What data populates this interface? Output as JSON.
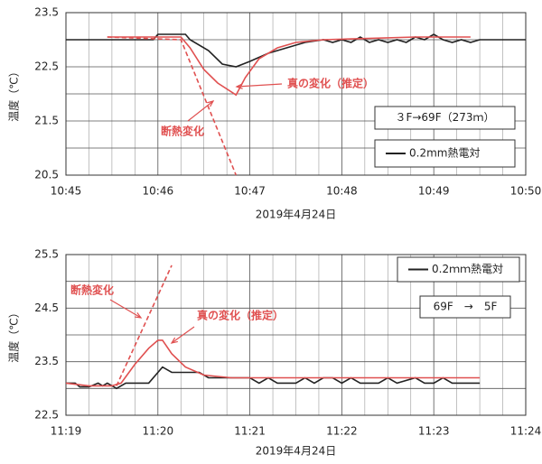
{
  "chart_data": [
    {
      "type": "line",
      "x_label": "2019年4月24日",
      "y_label": "温度（℃）",
      "xlim": [
        645,
        650
      ],
      "ylim": [
        20.5,
        23.5
      ],
      "xticks": [
        {
          "value": 645,
          "label": "10:45"
        },
        {
          "value": 646,
          "label": "10:46"
        },
        {
          "value": 647,
          "label": "10:47"
        },
        {
          "value": 648,
          "label": "10:48"
        },
        {
          "value": 649,
          "label": "10:49"
        },
        {
          "value": 650,
          "label": "10:50"
        }
      ],
      "yticks": [
        20.5,
        21.5,
        22.5,
        23.5
      ],
      "grid": true,
      "annotations": [
        "３F→69F（273ｍ）"
      ],
      "series": [
        {
          "name": "0.2mm熱電対",
          "color": "#222222",
          "dashed": false,
          "x": [
            645.0,
            645.95,
            646.0,
            646.3,
            646.35,
            646.55,
            646.7,
            646.85,
            647.0,
            647.2,
            647.4,
            647.6,
            647.8,
            647.9,
            648.0,
            648.1,
            648.2,
            648.3,
            648.4,
            648.5,
            648.6,
            648.7,
            648.8,
            648.9,
            649.0,
            649.1,
            649.2,
            649.3,
            649.4,
            649.5,
            650.0
          ],
          "values": [
            23.0,
            23.0,
            23.1,
            23.1,
            23.0,
            22.8,
            22.55,
            22.5,
            22.6,
            22.75,
            22.85,
            22.95,
            23.0,
            22.95,
            23.0,
            22.95,
            23.05,
            22.95,
            23.0,
            22.95,
            23.0,
            22.95,
            23.05,
            23.0,
            23.1,
            23.0,
            22.95,
            23.0,
            22.95,
            23.0,
            23.0
          ]
        },
        {
          "name": "真の変化（推定）",
          "color": "#e05050",
          "dashed": false,
          "x": [
            645.45,
            646.25,
            646.35,
            646.5,
            646.65,
            646.85,
            646.95,
            647.1,
            647.3,
            647.5,
            647.8,
            648.2,
            648.8,
            649.4
          ],
          "values": [
            23.05,
            23.05,
            22.85,
            22.45,
            22.2,
            21.98,
            22.3,
            22.65,
            22.85,
            22.95,
            23.0,
            23.02,
            23.05,
            23.05
          ]
        },
        {
          "name": "断熱変化",
          "color": "#e05050",
          "dashed": true,
          "x": [
            645.45,
            646.25,
            646.85
          ],
          "values": [
            23.05,
            23.0,
            20.5
          ]
        }
      ]
    },
    {
      "type": "line",
      "x_label": "2019年4月24日",
      "y_label": "温度（℃）",
      "xlim": [
        679,
        684
      ],
      "ylim": [
        22.5,
        25.5
      ],
      "xticks": [
        {
          "value": 679,
          "label": "11:19"
        },
        {
          "value": 680,
          "label": "11:20"
        },
        {
          "value": 681,
          "label": "11:21"
        },
        {
          "value": 682,
          "label": "11:22"
        },
        {
          "value": 683,
          "label": "11:23"
        },
        {
          "value": 684,
          "label": "11:24"
        }
      ],
      "yticks": [
        22.5,
        23.5,
        24.5,
        25.5
      ],
      "grid": true,
      "annotations": [
        "69F　→　5F"
      ],
      "series": [
        {
          "name": "0.2ｍｍ熱電対",
          "color": "#222222",
          "dashed": false,
          "x": [
            679.0,
            679.1,
            679.15,
            679.25,
            679.35,
            679.4,
            679.45,
            679.55,
            679.65,
            679.9,
            680.05,
            680.15,
            680.45,
            680.55,
            681.0,
            681.1,
            681.2,
            681.3,
            681.5,
            681.6,
            681.7,
            681.8,
            681.9,
            682.0,
            682.1,
            682.2,
            682.4,
            682.5,
            682.6,
            682.8,
            682.9,
            683.0,
            683.1,
            683.2,
            683.5
          ],
          "values": [
            23.1,
            23.1,
            23.03,
            23.03,
            23.1,
            23.05,
            23.1,
            23.0,
            23.1,
            23.1,
            23.4,
            23.3,
            23.3,
            23.2,
            23.2,
            23.1,
            23.2,
            23.1,
            23.1,
            23.2,
            23.1,
            23.2,
            23.2,
            23.1,
            23.2,
            23.1,
            23.1,
            23.2,
            23.1,
            23.2,
            23.1,
            23.1,
            23.2,
            23.1,
            23.1
          ]
        },
        {
          "name": "真の変化（推定）",
          "color": "#e05050",
          "dashed": false,
          "x": [
            679.0,
            679.25,
            679.5,
            679.6,
            679.75,
            679.9,
            680.0,
            680.05,
            680.15,
            680.3,
            680.5,
            680.8,
            683.5
          ],
          "values": [
            23.1,
            23.05,
            23.05,
            23.1,
            23.45,
            23.75,
            23.9,
            23.9,
            23.65,
            23.4,
            23.25,
            23.2,
            23.2
          ]
        },
        {
          "name": "断熱変化",
          "color": "#e05050",
          "dashed": true,
          "x": [
            679.55,
            680.15
          ],
          "values": [
            23.05,
            25.3
          ]
        }
      ]
    }
  ]
}
